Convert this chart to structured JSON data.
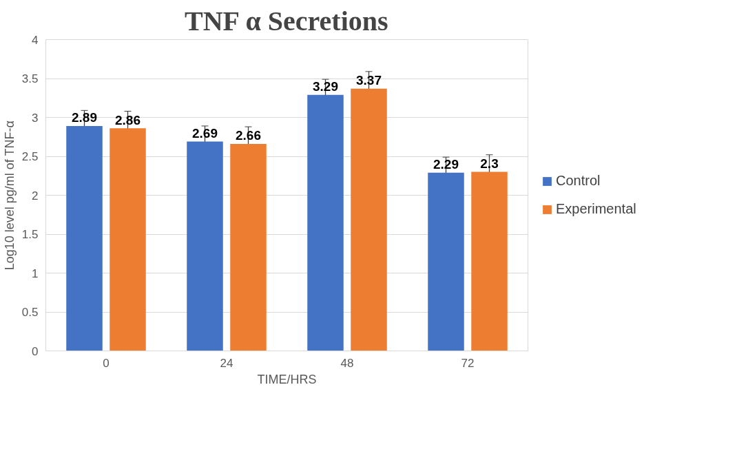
{
  "chart_data": {
    "type": "bar",
    "title": "TNF α Secretions",
    "xlabel": "TIME/HRS",
    "ylabel": "Log10 level pg/ml of TNF-α",
    "categories": [
      "0",
      "24",
      "48",
      "72"
    ],
    "series": [
      {
        "name": "Control",
        "color": "#4472c4",
        "values": [
          2.89,
          2.69,
          3.29,
          2.29
        ],
        "errors": [
          0.2,
          0.2,
          0.2,
          0.2
        ]
      },
      {
        "name": "Experimental",
        "color": "#ed7d31",
        "values": [
          2.86,
          2.66,
          3.37,
          2.3
        ],
        "errors": [
          0.22,
          0.22,
          0.22,
          0.22
        ]
      }
    ],
    "ylim": [
      0,
      4
    ],
    "yticks": [
      0,
      0.5,
      1,
      1.5,
      2,
      2.5,
      3,
      3.5,
      4
    ],
    "grid": "y",
    "legend": "right",
    "data_labels": true
  }
}
